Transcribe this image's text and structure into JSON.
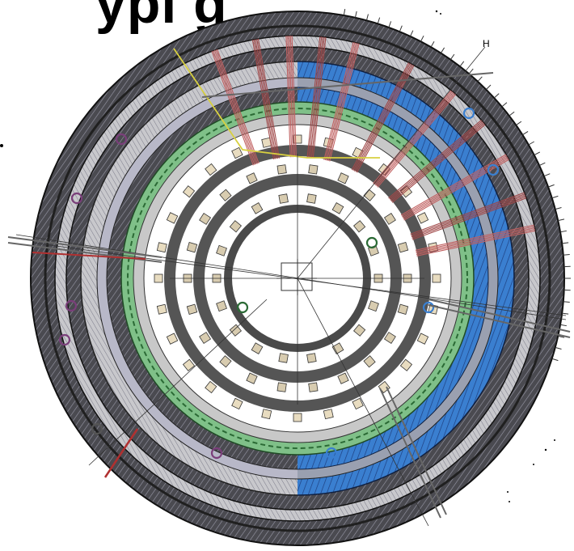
{
  "title_fragment": "ypi g",
  "labels": {
    "corner_letter": "H"
  },
  "colors": {
    "outer_ring": "#3c3c40",
    "blue_modules": "#3a7fd0",
    "green_band": "#7fc088",
    "red_cables": "#b85050",
    "dark_ring": "#555555",
    "yellow_traces": "#d8d040",
    "purple_loops": "#7a3f7a",
    "light_grey": "#cfcfcf",
    "white_gap": "#ffffff"
  }
}
